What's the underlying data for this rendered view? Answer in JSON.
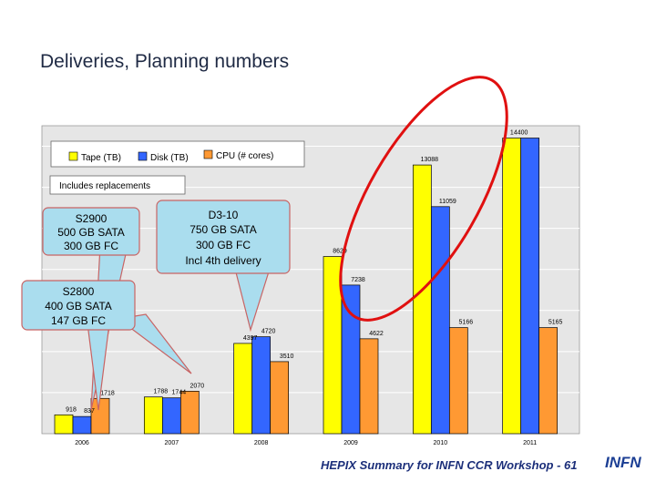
{
  "slide": {
    "title": "Deliveries, Planning numbers",
    "footer": "HEPIX Summary for INFN CCR Workshop - 61",
    "logo_text": "INFN"
  },
  "legend": {
    "items": [
      {
        "name": "Tape (TB)",
        "color": "#ffff00"
      },
      {
        "name": "Disk (TB)",
        "color": "#3366ff"
      },
      {
        "name": "CPU (# cores)",
        "color": "#ff9933"
      }
    ]
  },
  "notes": {
    "replacements": "Includes replacements"
  },
  "callouts": [
    {
      "lines": [
        "S2900",
        "500 GB SATA",
        "300 GB FC"
      ]
    },
    {
      "lines": [
        "D3-10",
        "750 GB SATA",
        "300 GB FC",
        "Incl 4th delivery"
      ]
    },
    {
      "lines": [
        "S2800",
        "400 GB SATA",
        "147 GB FC"
      ]
    }
  ],
  "chart_data": {
    "type": "bar",
    "categories": [
      "2006",
      "2007",
      "2008",
      "2009",
      "2010",
      "2011"
    ],
    "series": [
      {
        "name": "Tape (TB)",
        "color": "#ffff00",
        "values": [
          918,
          1788,
          4397,
          8629,
          13088,
          14400
        ],
        "labels": [
          "918",
          "1788",
          "4397",
          "8629",
          "13088",
          "14400"
        ]
      },
      {
        "name": "Disk (TB)",
        "color": "#3366ff",
        "values": [
          837,
          1744,
          4720,
          7238,
          11059,
          14400
        ],
        "labels": [
          "837",
          "1744",
          "4720",
          "7238",
          "11059",
          ""
        ]
      },
      {
        "name": "CPU (# cores)",
        "color": "#ff9933",
        "values": [
          1718,
          2070,
          3510,
          4622,
          5166,
          5165
        ],
        "labels": [
          "1718",
          "2070",
          "3510",
          "4622",
          "5166",
          "5165"
        ]
      }
    ],
    "xlabel": "",
    "ylabel": "",
    "grid": true,
    "legend_position": "top-left"
  }
}
